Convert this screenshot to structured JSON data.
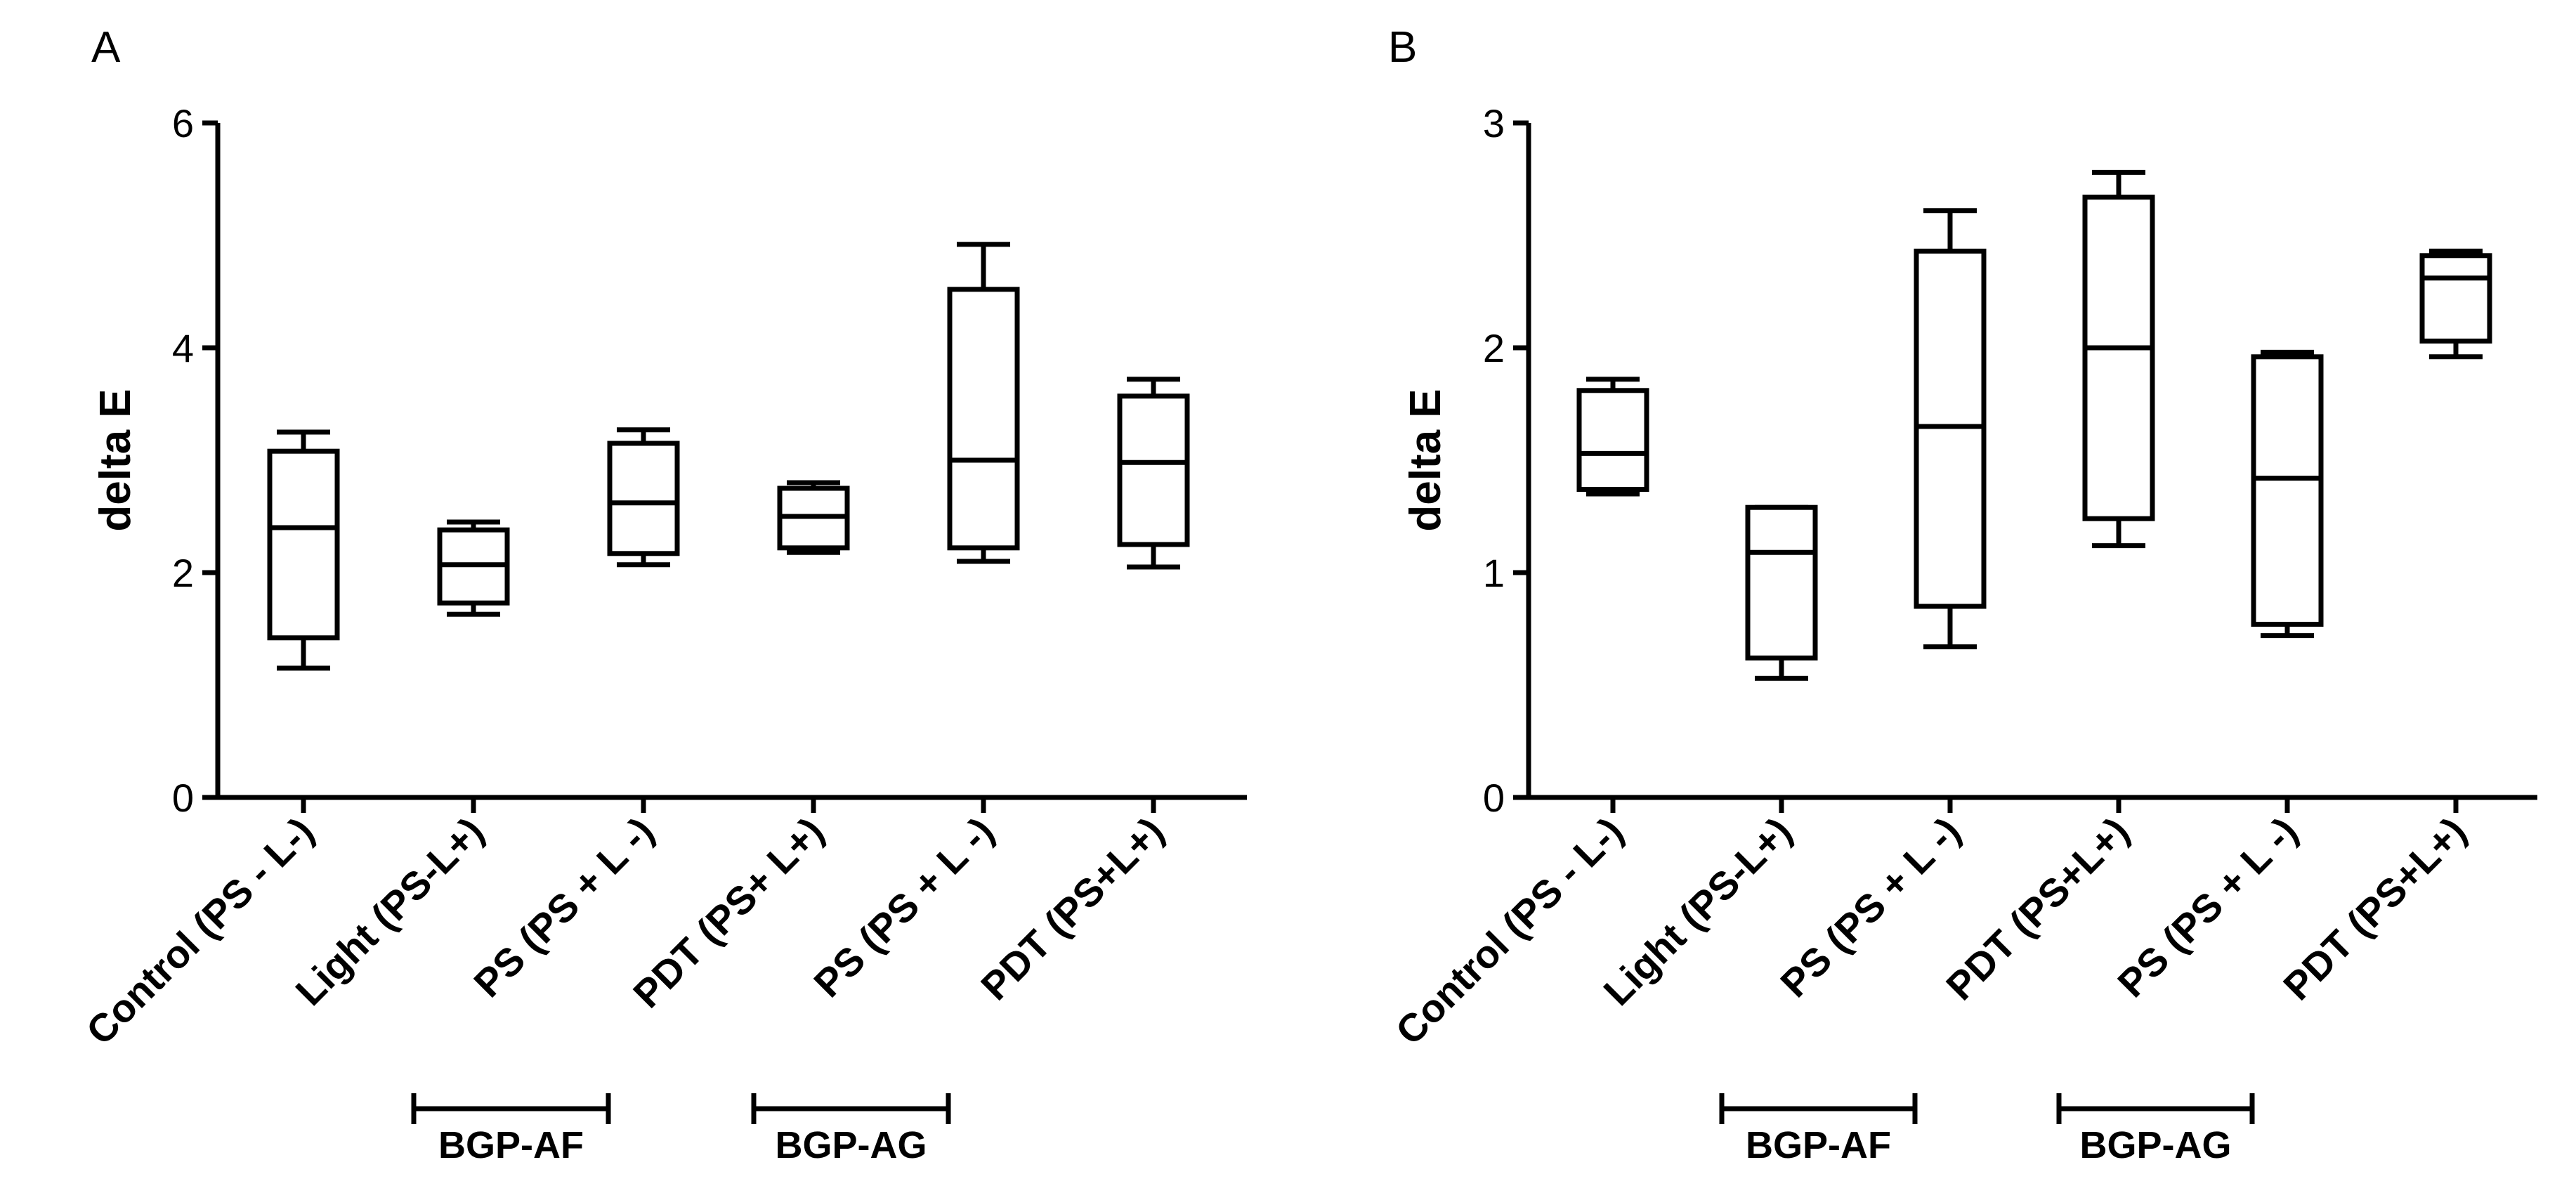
{
  "chart_data": [
    {
      "type": "boxplot",
      "panel_label": "A",
      "ylabel": "delta E",
      "ylim": [
        0,
        6
      ],
      "yticks": [
        "0",
        "2",
        "4",
        "6"
      ],
      "categories": [
        "Control (PS - L-)",
        "Light (PS-L+)",
        "PS (PS + L -)",
        "PDT (PS+ L+)",
        "PS (PS + L -)",
        "PDT (PS+L+)"
      ],
      "boxes": [
        {
          "min": 1.15,
          "q1": 1.42,
          "median": 2.4,
          "q3": 3.08,
          "max": 3.25
        },
        {
          "min": 1.63,
          "q1": 1.73,
          "median": 2.07,
          "q3": 2.38,
          "max": 2.45
        },
        {
          "min": 2.07,
          "q1": 2.17,
          "median": 2.62,
          "q3": 3.15,
          "max": 3.27
        },
        {
          "min": 2.18,
          "q1": 2.22,
          "median": 2.5,
          "q3": 2.75,
          "max": 2.8
        },
        {
          "min": 2.1,
          "q1": 2.22,
          "median": 3.0,
          "q3": 4.52,
          "max": 4.92
        },
        {
          "min": 2.05,
          "q1": 2.25,
          "median": 2.98,
          "q3": 3.57,
          "max": 3.72
        }
      ],
      "groups": [
        {
          "label": "BGP-AF",
          "from": 1,
          "to": 2
        },
        {
          "label": "BGP-AG",
          "from": 3,
          "to": 4
        }
      ]
    },
    {
      "type": "boxplot",
      "panel_label": "B",
      "ylabel": "delta E",
      "ylim": [
        0,
        3
      ],
      "yticks": [
        "0",
        "1",
        "2",
        "3"
      ],
      "categories": [
        "Control (PS - L-)",
        "Light (PS-L+)",
        "PS (PS + L -)",
        "PDT (PS+L+)",
        "PS (PS + L -)",
        "PDT (PS+L+)"
      ],
      "boxes": [
        {
          "min": 1.35,
          "q1": 1.37,
          "median": 1.53,
          "q3": 1.81,
          "max": 1.86
        },
        {
          "min": 0.53,
          "q1": 0.62,
          "median": 1.09,
          "q3": 1.29,
          "max": 1.29
        },
        {
          "min": 0.67,
          "q1": 0.85,
          "median": 1.65,
          "q3": 2.43,
          "max": 2.61
        },
        {
          "min": 1.12,
          "q1": 1.24,
          "median": 2.0,
          "q3": 2.67,
          "max": 2.78
        },
        {
          "min": 0.72,
          "q1": 0.77,
          "median": 1.42,
          "q3": 1.96,
          "max": 1.98
        },
        {
          "min": 1.96,
          "q1": 2.03,
          "median": 2.31,
          "q3": 2.41,
          "max": 2.43
        }
      ],
      "groups": [
        {
          "label": "BGP-AF",
          "from": 1,
          "to": 2
        },
        {
          "label": "BGP-AG",
          "from": 3,
          "to": 4
        }
      ]
    }
  ]
}
